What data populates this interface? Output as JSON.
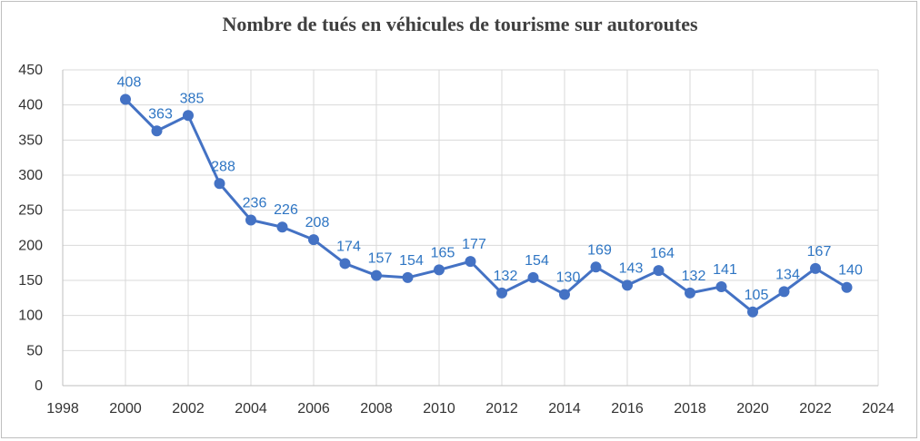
{
  "chart_data": {
    "type": "line",
    "title": "Nombre de tués en véhicules de tourisme sur autoroutes",
    "xlabel": "",
    "ylabel": "",
    "xlim": [
      1998,
      2024
    ],
    "ylim": [
      0,
      450
    ],
    "x_ticks": [
      1998,
      2000,
      2002,
      2004,
      2006,
      2008,
      2010,
      2012,
      2014,
      2016,
      2018,
      2020,
      2022,
      2024
    ],
    "y_ticks": [
      0,
      50,
      100,
      150,
      200,
      250,
      300,
      350,
      400,
      450
    ],
    "grid": true,
    "legend": "none",
    "color": "#4472c4",
    "label_color": "#2e75c3",
    "series": [
      {
        "x": [
          2000,
          2001,
          2002,
          2003,
          2004,
          2005,
          2006,
          2007,
          2008,
          2009,
          2010,
          2011,
          2012,
          2013,
          2014,
          2015,
          2016,
          2017,
          2018,
          2019,
          2020,
          2021,
          2022,
          2023
        ],
        "y": [
          408,
          363,
          385,
          288,
          236,
          226,
          208,
          174,
          157,
          154,
          165,
          177,
          132,
          154,
          130,
          169,
          143,
          164,
          132,
          141,
          105,
          134,
          167,
          140
        ]
      }
    ]
  }
}
